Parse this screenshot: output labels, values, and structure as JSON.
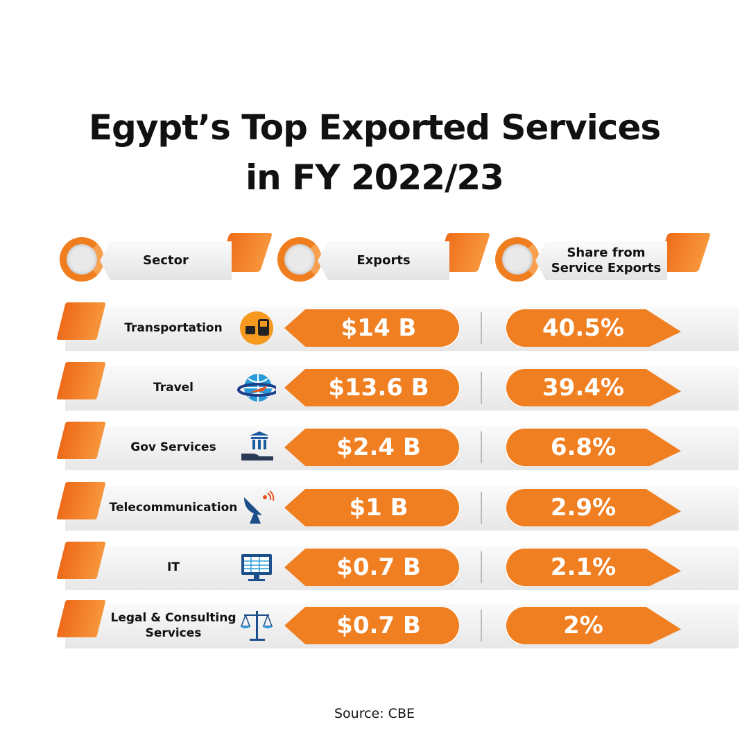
{
  "title_line1": "Egypt’s Top Exported Services",
  "title_line2": "in FY 2022/23",
  "headers": {
    "sector": "Sector",
    "exports": "Exports",
    "share": "Share from Service Exports"
  },
  "accent_color": "#f07f22",
  "chart_data": {
    "type": "table",
    "title": "Egypt’s Top Exported Services in FY 2022/23",
    "columns": [
      "Sector",
      "Exports",
      "Share from Service Exports"
    ],
    "rows": [
      {
        "sector": "Transportation",
        "icon": "taxi-bus-icon",
        "exports": "$14 B",
        "share": "40.5%"
      },
      {
        "sector": "Travel",
        "icon": "globe-plane-icon",
        "exports": "$13.6 B",
        "share": "39.4%"
      },
      {
        "sector": "Gov Services",
        "icon": "government-building-hand-icon",
        "exports": "$2.4 B",
        "share": "6.8%"
      },
      {
        "sector": "Telecommunication",
        "icon": "satellite-dish-icon",
        "exports": "$1 B",
        "share": "2.9%"
      },
      {
        "sector": "IT",
        "icon": "computer-monitor-icon",
        "exports": "$0.7 B",
        "share": "2.1%"
      },
      {
        "sector": "Legal & Consulting Services",
        "icon": "scales-of-justice-icon",
        "exports": "$0.7 B",
        "share": "2%"
      }
    ]
  },
  "source": "Source: CBE"
}
